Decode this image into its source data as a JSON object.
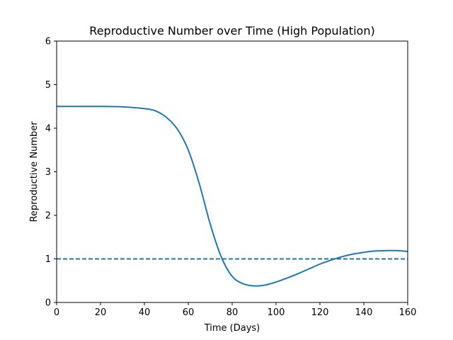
{
  "chart_data": {
    "type": "line",
    "title": "Reproductive Number over Time (High Population)",
    "xlabel": "Time (Days)",
    "ylabel": "Reproductive Number",
    "xlim": [
      0,
      160
    ],
    "ylim": [
      0,
      6
    ],
    "xticks": [
      0,
      20,
      40,
      60,
      80,
      100,
      120,
      140,
      160
    ],
    "yticks": [
      0,
      1,
      2,
      3,
      4,
      5,
      6
    ],
    "grid": false,
    "legend": "none",
    "series": [
      {
        "color": "#1f77b4",
        "style": "solid",
        "x": [
          0,
          10,
          20,
          30,
          40,
          45,
          50,
          55,
          60,
          65,
          70,
          75,
          80,
          85,
          90,
          95,
          100,
          105,
          110,
          115,
          120,
          125,
          130,
          135,
          140,
          145,
          150,
          155,
          160
        ],
        "y": [
          4.5,
          4.5,
          4.5,
          4.49,
          4.45,
          4.4,
          4.25,
          3.98,
          3.5,
          2.73,
          1.8,
          1.05,
          0.6,
          0.43,
          0.38,
          0.4,
          0.47,
          0.56,
          0.66,
          0.77,
          0.88,
          0.97,
          1.05,
          1.11,
          1.15,
          1.18,
          1.19,
          1.19,
          1.17
        ]
      },
      {
        "color": "#1f77b4",
        "style": "dashed",
        "x": [
          0,
          160
        ],
        "y": [
          1,
          1
        ]
      }
    ]
  }
}
